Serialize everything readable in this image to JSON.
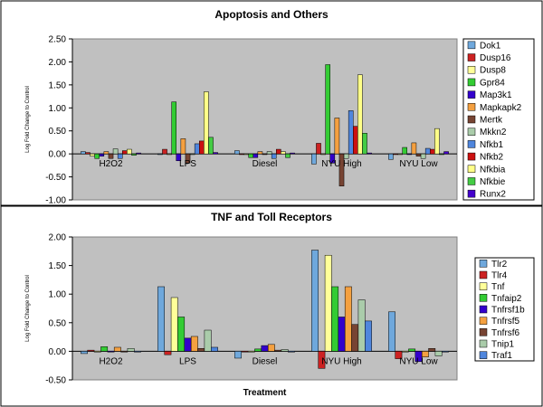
{
  "chart_data": [
    {
      "type": "bar",
      "title": "Apoptosis and Others",
      "xlabel": "",
      "ylabel": "Log Fold Change to Control",
      "ylim": [
        -1.0,
        2.5
      ],
      "yticks": [
        "2.50",
        "2.00",
        "1.50",
        "1.00",
        "0.50",
        "0.00",
        "-0.50",
        "-1.00"
      ],
      "categories": [
        "H2O2",
        "LPS",
        "Diesel",
        "NYU High",
        "NYU Low"
      ],
      "legend_position": "right",
      "grid": false,
      "series": [
        {
          "name": "Dok1",
          "color": "#6fa8dc",
          "values": [
            0.05,
            0.0,
            0.07,
            -0.22,
            -0.12
          ]
        },
        {
          "name": "Dusp16",
          "color": "#cc2222",
          "values": [
            0.03,
            0.1,
            0.0,
            0.23,
            0.0
          ]
        },
        {
          "name": "Dusp8",
          "color": "#ffff99",
          "values": [
            -0.05,
            0.0,
            0.0,
            0.0,
            0.0
          ]
        },
        {
          "name": "Gpr84",
          "color": "#33cc33",
          "values": [
            -0.1,
            1.13,
            -0.08,
            1.94,
            0.14
          ]
        },
        {
          "name": "Map3k1",
          "color": "#3300cc",
          "values": [
            -0.05,
            -0.15,
            -0.08,
            -0.2,
            0.0
          ]
        },
        {
          "name": "Mapkapk2",
          "color": "#f4a040",
          "values": [
            0.05,
            0.33,
            0.05,
            0.78,
            0.24
          ]
        },
        {
          "name": "Mertk",
          "color": "#774433",
          "values": [
            -0.1,
            -0.2,
            0.0,
            -0.7,
            -0.05
          ]
        },
        {
          "name": "Mkkn2",
          "color": "#aaccaa",
          "values": [
            0.11,
            0.0,
            0.05,
            -0.1,
            -0.1
          ]
        },
        {
          "name": "Nfkb1",
          "color": "#4f86dd",
          "values": [
            -0.1,
            0.22,
            -0.1,
            0.94,
            0.12
          ]
        },
        {
          "name": "Nfkb2",
          "color": "#cc1111",
          "values": [
            0.07,
            0.28,
            0.1,
            0.6,
            0.1
          ]
        },
        {
          "name": "Nfkbia",
          "color": "#ffff88",
          "values": [
            0.1,
            1.35,
            0.05,
            1.72,
            0.55
          ]
        },
        {
          "name": "Nfkbie",
          "color": "#44cc44",
          "values": [
            -0.03,
            0.36,
            -0.08,
            0.45,
            0.0
          ]
        },
        {
          "name": "Runx2",
          "color": "#4400cc",
          "values": [
            0.02,
            0.03,
            0.02,
            0.02,
            0.05
          ]
        }
      ]
    },
    {
      "type": "bar",
      "title": "TNF and Toll Receptors",
      "xlabel": "Treatment",
      "ylabel": "Log Fold Change to Control",
      "ylim": [
        -0.5,
        2.0
      ],
      "yticks": [
        "2.00",
        "1.50",
        "1.00",
        "0.50",
        "0.00",
        "-0.50"
      ],
      "categories": [
        "H2O2",
        "LPS",
        "Diesel",
        "NYU High",
        "NYU Low"
      ],
      "legend_position": "right",
      "grid": false,
      "series": [
        {
          "name": "Tlr2",
          "color": "#6fa8dc",
          "values": [
            -0.04,
            1.13,
            -0.12,
            1.77,
            0.69
          ]
        },
        {
          "name": "Tlr4",
          "color": "#cc2222",
          "values": [
            0.02,
            -0.06,
            0.0,
            -0.3,
            -0.13
          ]
        },
        {
          "name": "Tnf",
          "color": "#ffff99",
          "values": [
            0.0,
            0.94,
            0.0,
            1.68,
            0.0
          ]
        },
        {
          "name": "Tnfaip2",
          "color": "#33cc33",
          "values": [
            0.08,
            0.6,
            0.04,
            1.13,
            0.04
          ]
        },
        {
          "name": "Tnfrsf1b",
          "color": "#3300cc",
          "values": [
            0.0,
            0.23,
            0.1,
            0.6,
            -0.18
          ]
        },
        {
          "name": "Tnfrsf5",
          "color": "#f4a040",
          "values": [
            0.07,
            0.26,
            0.12,
            1.13,
            -0.1
          ]
        },
        {
          "name": "Tnfrsf6",
          "color": "#774433",
          "values": [
            0.0,
            0.05,
            0.02,
            0.47,
            0.05
          ]
        },
        {
          "name": "Tnip1",
          "color": "#aaccaa",
          "values": [
            0.05,
            0.37,
            0.03,
            0.9,
            -0.08
          ]
        },
        {
          "name": "Traf1",
          "color": "#4f86dd",
          "values": [
            0.0,
            0.07,
            0.0,
            0.53,
            0.0
          ]
        }
      ]
    }
  ]
}
